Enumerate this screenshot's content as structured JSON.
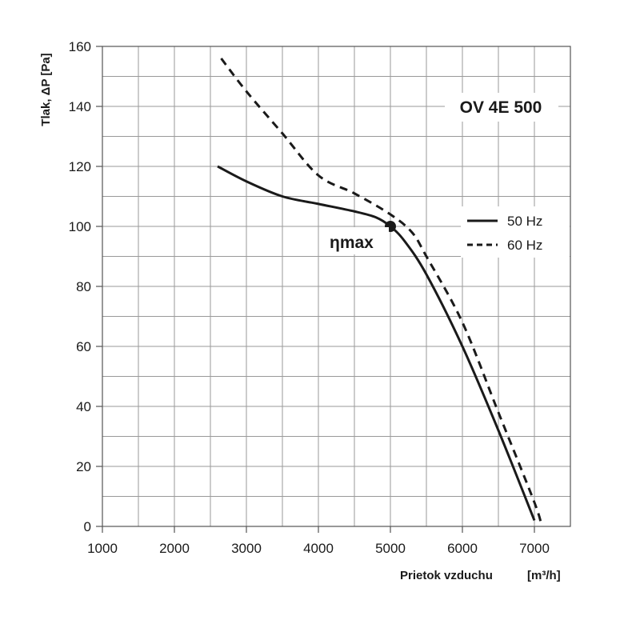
{
  "chart_data": {
    "type": "line",
    "title": "OV 4E 500",
    "xlabel": "Prietok vzduchu",
    "xlabel_unit": "[m³/h]",
    "ylabel": "Tlak, ΔP [Pa]",
    "xlim": [
      1000,
      7500
    ],
    "ylim": [
      0,
      160
    ],
    "xticks": [
      1000,
      2000,
      3000,
      4000,
      5000,
      6000,
      7000
    ],
    "yticks": [
      0,
      20,
      40,
      60,
      80,
      100,
      120,
      140,
      160
    ],
    "grid": true,
    "legend_position": "right",
    "series": [
      {
        "name": "50 Hz",
        "style": "solid",
        "color": "#1a1a1a",
        "x": [
          2600,
          3000,
          3500,
          4000,
          4500,
          4800,
          5000,
          5200,
          5500,
          6000,
          6500,
          7000
        ],
        "y": [
          120,
          115,
          110,
          107.5,
          105,
          103,
          100,
          95,
          84,
          60,
          32,
          2
        ]
      },
      {
        "name": "60 Hz",
        "style": "dashed",
        "color": "#1a1a1a",
        "x": [
          2650,
          3000,
          3500,
          4000,
          4500,
          5000,
          5300,
          5500,
          6000,
          6500,
          7000,
          7100
        ],
        "y": [
          156,
          145,
          131,
          117,
          111,
          104,
          98,
          90,
          68,
          38,
          8,
          0
        ]
      }
    ],
    "annotations": [
      {
        "text": "ηmax",
        "x": 5000,
        "y": 100
      }
    ]
  }
}
